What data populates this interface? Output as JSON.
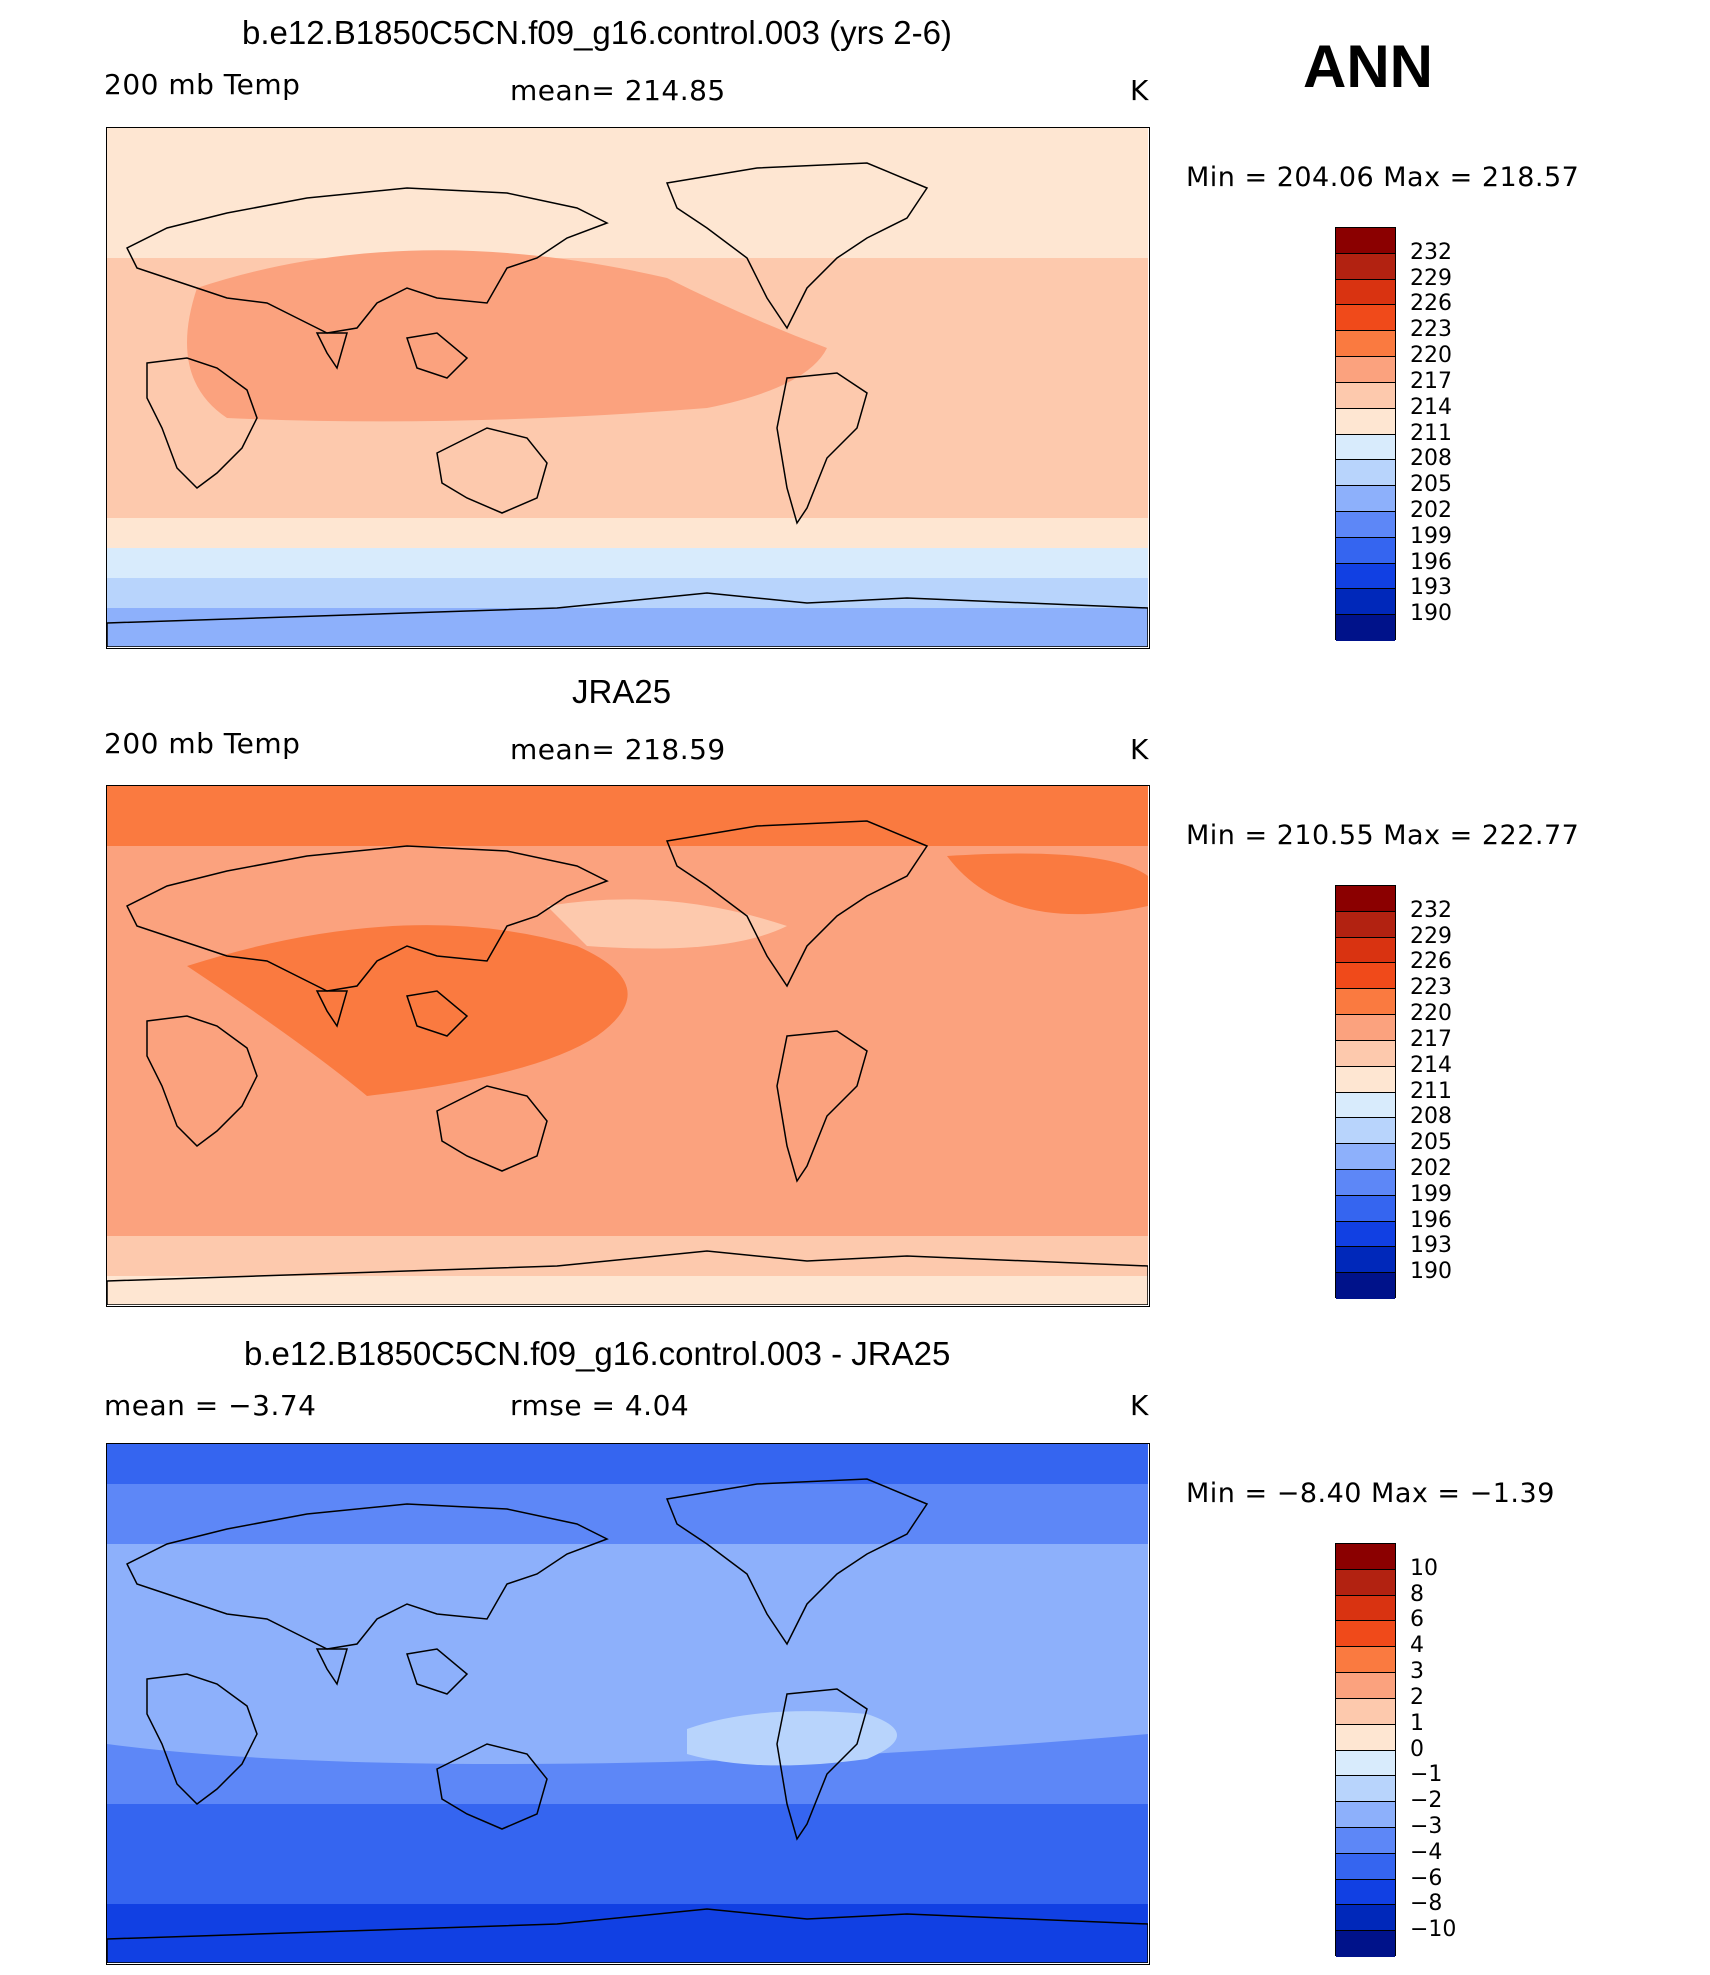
{
  "season": "ANN",
  "colors": {
    "temp_palette": [
      "#8b0000",
      "#b22211",
      "#d93311",
      "#f04a1a",
      "#fa7a40",
      "#fba27e",
      "#fdc9ad",
      "#fee6d2",
      "#d8ebfc",
      "#b8d4fc",
      "#8db0fb",
      "#5d87f7",
      "#3565f0",
      "#1140e3",
      "#0028ba",
      "#00128a"
    ],
    "diff_palette": [
      "#8b0000",
      "#b22211",
      "#d93311",
      "#f04a1a",
      "#fa7a40",
      "#fba27e",
      "#fdc9ad",
      "#fee6d2",
      "#d8ebfc",
      "#b8d4fc",
      "#8db0fb",
      "#5d87f7",
      "#3565f0",
      "#1140e3",
      "#0028ba",
      "#00128a"
    ]
  },
  "panels": [
    {
      "title": "b.e12.B1850C5CN.f09_g16.control.003 (yrs 2-6)",
      "left_label": "200 mb Temp",
      "center_label": "mean=  214.85",
      "units": "K",
      "minmax": "Min  =  204.06  Max  =  218.57",
      "colorbar_labels": [
        "232",
        "229",
        "226",
        "223",
        "220",
        "217",
        "214",
        "211",
        "208",
        "205",
        "202",
        "199",
        "196",
        "193",
        "190"
      ],
      "fields": {
        "base": 214,
        "equator": 216,
        "north": 212,
        "south_high": 210,
        "pole": 205
      }
    },
    {
      "title": "JRA25",
      "left_label": "200 mb Temp",
      "center_label": "mean=  218.59",
      "units": "K",
      "minmax": "Min  =  210.55  Max  =  222.77",
      "colorbar_labels": [
        "232",
        "229",
        "226",
        "223",
        "220",
        "217",
        "214",
        "211",
        "208",
        "205",
        "202",
        "199",
        "196",
        "193",
        "190"
      ],
      "fields": {
        "base": 218,
        "equator": 219,
        "north": 221,
        "south_high": 217,
        "pole": 212
      }
    },
    {
      "title": "b.e12.B1850C5CN.f09_g16.control.003 - JRA25",
      "left_label": "mean  =     −3.74",
      "center_label": "rmse  =      4.04",
      "units": "K",
      "minmax": "Min  =    −8.40  Max  =    −1.39",
      "colorbar_labels": [
        "10",
        "8",
        "6",
        "4",
        "3",
        "2",
        "1",
        "0",
        "−1",
        "−2",
        "−3",
        "−4",
        "−6",
        "−8",
        "−10"
      ],
      "fields": {
        "base": -3,
        "equator": -2.5,
        "north": -4,
        "south_high": -4.5,
        "pole": -6
      }
    }
  ]
}
